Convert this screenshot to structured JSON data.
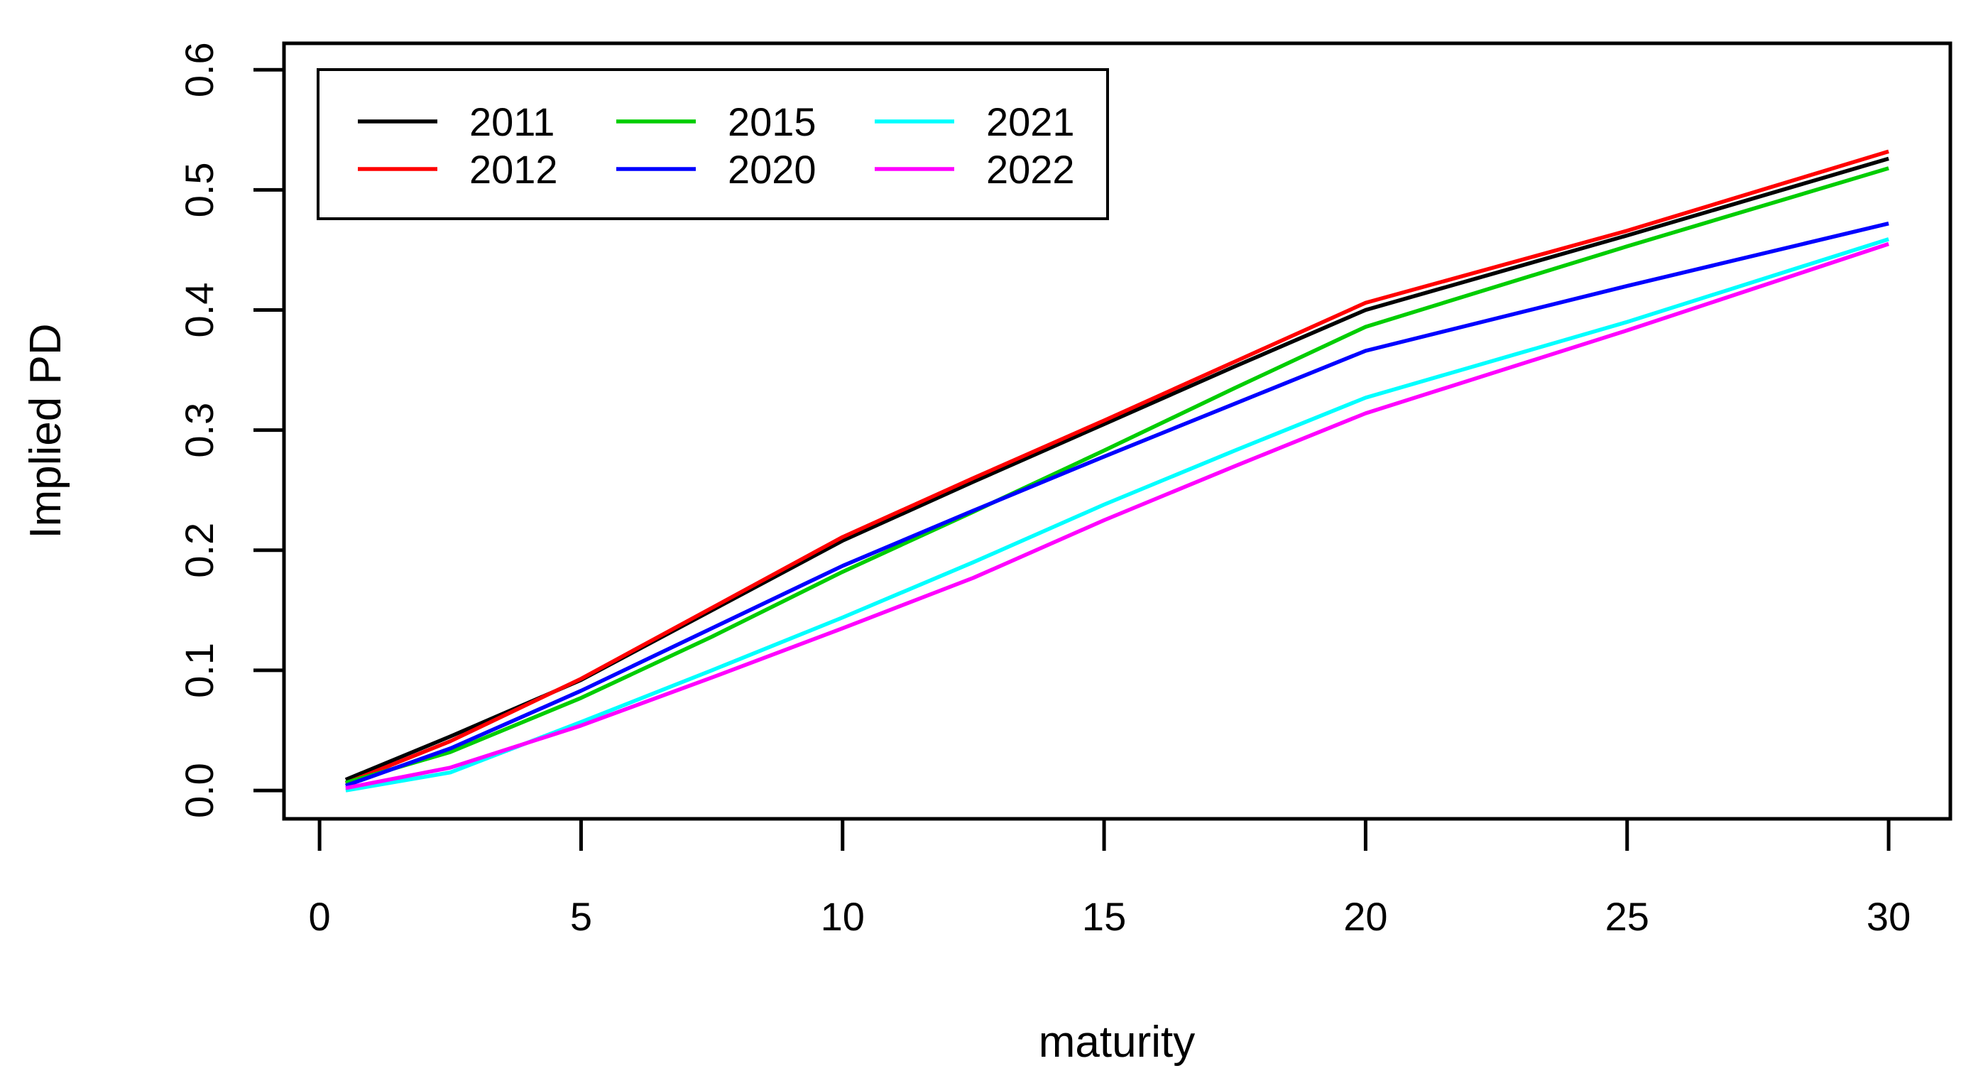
{
  "chart_data": {
    "type": "line",
    "title": "",
    "xlabel": "maturity",
    "ylabel": "Implied PD",
    "grid": false,
    "legend_position": "top-left",
    "xlim": [
      -0.68,
      31.18
    ],
    "ylim": [
      -0.0236,
      0.622
    ],
    "x_ticks": [
      "0",
      "5",
      "10",
      "15",
      "20",
      "25",
      "30"
    ],
    "x_tick_values": [
      0,
      5,
      10,
      15,
      20,
      25,
      30
    ],
    "y_ticks": [
      "0.0",
      "0.1",
      "0.2",
      "0.3",
      "0.4",
      "0.5",
      "0.6"
    ],
    "y_tick_values": [
      0.0,
      0.1,
      0.2,
      0.3,
      0.4,
      0.5,
      0.6
    ],
    "x": [
      0.5,
      2.5,
      5,
      7.5,
      10,
      12.5,
      15,
      17.5,
      20,
      25,
      30
    ],
    "series": [
      {
        "name": "2011",
        "color": "#000000",
        "values": [
          0.009,
          0.045,
          0.092,
          0.15,
          0.208,
          0.257,
          0.305,
          0.353,
          0.4,
          0.462,
          0.526
        ]
      },
      {
        "name": "2012",
        "color": "#FF0000",
        "values": [
          0.006,
          0.041,
          0.093,
          0.152,
          0.211,
          0.26,
          0.308,
          0.357,
          0.406,
          0.466,
          0.532
        ]
      },
      {
        "name": "2015",
        "color": "#00CD00",
        "values": [
          0.0065,
          0.032,
          0.077,
          0.128,
          0.182,
          0.232,
          0.283,
          0.335,
          0.386,
          0.453,
          0.518
        ]
      },
      {
        "name": "2020",
        "color": "#0000FF",
        "values": [
          0.004,
          0.035,
          0.083,
          0.135,
          0.187,
          0.233,
          0.278,
          0.322,
          0.366,
          0.42,
          0.472
        ]
      },
      {
        "name": "2021",
        "color": "#00FFFF",
        "values": [
          0.0,
          0.015,
          0.057,
          0.1,
          0.144,
          0.19,
          0.238,
          0.283,
          0.327,
          0.39,
          0.459
        ]
      },
      {
        "name": "2022",
        "color": "#FF00FF",
        "values": [
          0.002,
          0.019,
          0.054,
          0.094,
          0.135,
          0.177,
          0.225,
          0.27,
          0.314,
          0.383,
          0.455
        ]
      }
    ]
  }
}
